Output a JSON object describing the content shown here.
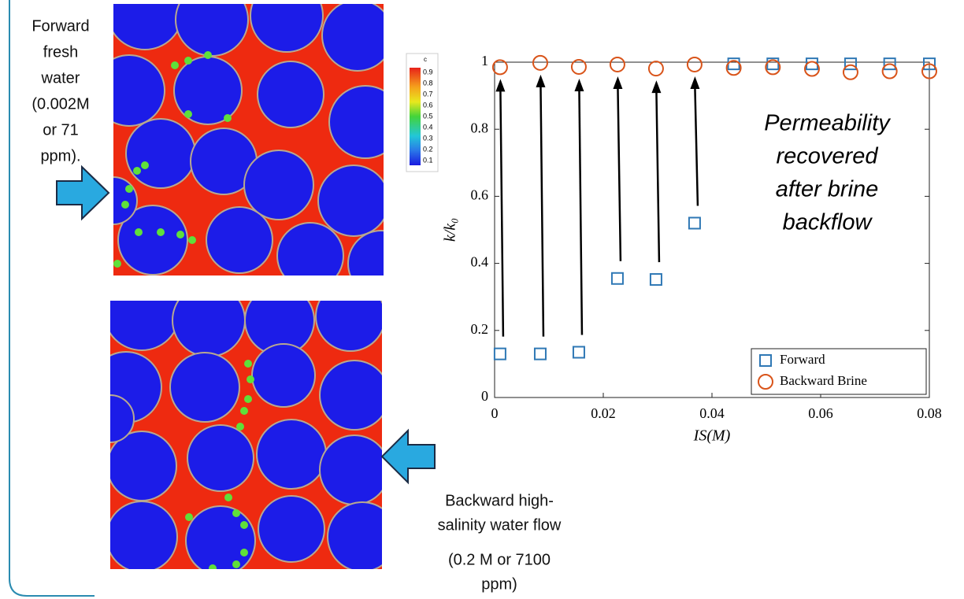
{
  "left_note": [
    "Forward",
    "fresh",
    "water",
    "(0.002M",
    "or 71",
    "ppm)."
  ],
  "bottom_note": [
    "Backward high-",
    "salinity water flow",
    "(0.2 M or 7100",
    "ppm)"
  ],
  "colorbar": {
    "title": "c",
    "labels": [
      "0.9",
      "0.8",
      "0.7",
      "0.6",
      "0.5",
      "0.4",
      "0.3",
      "0.2",
      "0.1"
    ]
  },
  "chart_data": {
    "type": "scatter",
    "annotation": [
      "Permeability",
      "recovered",
      "after brine",
      "backflow"
    ],
    "xlabel": "IS(M)",
    "ylabel": "k/k₀",
    "x": [
      0.001,
      0.0084,
      0.0155,
      0.0226,
      0.0297,
      0.0368,
      0.044,
      0.0512,
      0.0584,
      0.0655,
      0.0727,
      0.08
    ],
    "series": [
      {
        "name": "Forward",
        "color": "#2f78b5",
        "marker": "square",
        "values": [
          0.13,
          0.13,
          0.135,
          0.355,
          0.352,
          0.52,
          0.995,
          0.995,
          0.995,
          0.995,
          0.995,
          0.995
        ]
      },
      {
        "name": "Backward Brine",
        "color": "#d9541a",
        "marker": "circle",
        "values": [
          0.985,
          0.998,
          0.986,
          0.993,
          0.981,
          0.993,
          0.983,
          0.985,
          0.98,
          0.97,
          0.973,
          0.973
        ]
      }
    ],
    "xlim": [
      0,
      0.08
    ],
    "xticks": [
      0,
      0.02,
      0.04,
      0.06,
      0.08
    ],
    "ylim": [
      0,
      1
    ],
    "yticks": [
      0,
      0.2,
      0.4,
      0.6,
      0.8,
      1
    ],
    "grid": false,
    "legend": "lower right"
  }
}
